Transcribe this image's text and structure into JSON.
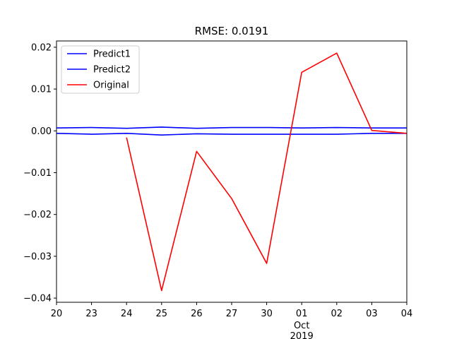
{
  "chart_data": {
    "type": "line",
    "title": "RMSE: 0.0191",
    "xlabel": "",
    "ylabel": "",
    "x_categories": [
      "20",
      "23",
      "24",
      "25",
      "26",
      "27",
      "30",
      "01",
      "02",
      "03",
      "04"
    ],
    "x_secondary_labels": [
      {
        "at": "01",
        "lines": [
          "Oct",
          "2019"
        ]
      }
    ],
    "ylim": [
      -0.041,
      0.0215
    ],
    "yticks": [
      0.02,
      0.01,
      0.0,
      -0.01,
      -0.02,
      -0.03,
      -0.04
    ],
    "ytick_labels": [
      "0.02",
      "0.01",
      "0.00",
      "−0.01",
      "−0.02",
      "−0.03",
      "−0.04"
    ],
    "grid": false,
    "legend_position": "upper-left",
    "series": [
      {
        "name": "Predict1",
        "color": "#0000ff",
        "values": [
          0.0007,
          0.0008,
          0.0006,
          0.0009,
          0.0006,
          0.0008,
          0.0008,
          0.0007,
          0.0008,
          0.0007,
          0.0007
        ]
      },
      {
        "name": "Predict2",
        "color": "#0000ff",
        "values": [
          -0.0006,
          -0.0008,
          -0.0006,
          -0.001,
          -0.0007,
          -0.0008,
          -0.0008,
          -0.0008,
          -0.0008,
          -0.0006,
          -0.0006
        ]
      },
      {
        "name": "Original",
        "color": "#ff0000",
        "values": [
          null,
          null,
          -0.0016,
          -0.0382,
          -0.0049,
          -0.0162,
          -0.0317,
          0.014,
          0.0186,
          0.0001,
          -0.0006
        ]
      }
    ]
  }
}
